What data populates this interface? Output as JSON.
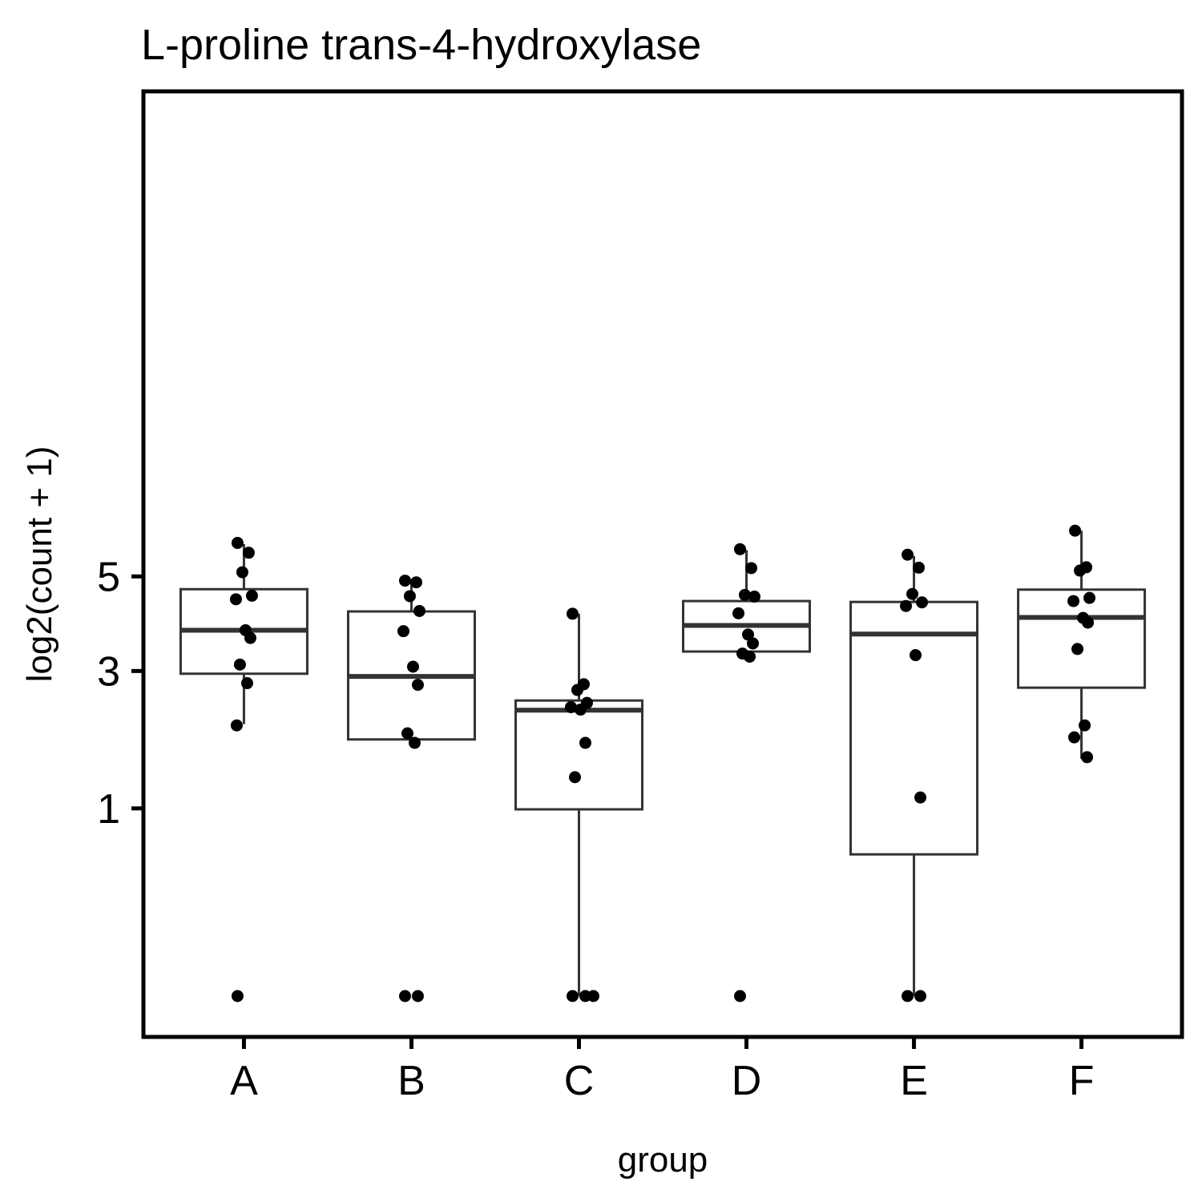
{
  "chart_data": {
    "type": "box",
    "title": "L-proline trans-4-hydroxylase",
    "xlabel": "group",
    "ylabel": "log2(count + 1)",
    "y_scale": "sqrt",
    "ylim": [
      0,
      6.55
    ],
    "y_ticks": [
      1,
      3,
      5
    ],
    "categories": [
      "A",
      "B",
      "C",
      "D",
      "E",
      "F"
    ],
    "boxes": [
      {
        "category": "A",
        "whisker_low": 2.1,
        "q1": 2.95,
        "median": 3.8,
        "q3": 4.7,
        "whisker_high": 5.8
      },
      {
        "category": "B",
        "whisker_low": 1.8,
        "q1": 1.87,
        "median": 2.9,
        "q3": 4.2,
        "whisker_high": 4.9
      },
      {
        "category": "C",
        "whisker_low": 0,
        "q1": 0.99,
        "median": 2.32,
        "q3": 2.48,
        "whisker_high": 4.15
      },
      {
        "category": "D",
        "whisker_low": 3.3,
        "q1": 3.37,
        "median": 3.9,
        "q3": 4.43,
        "whisker_high": 5.65
      },
      {
        "category": "E",
        "whisker_low": 0,
        "q1": 0.57,
        "median": 3.72,
        "q3": 4.41,
        "whisker_high": 5.5
      },
      {
        "category": "F",
        "whisker_low": 1.6,
        "q1": 2.7,
        "median": 4.07,
        "q3": 4.69,
        "whisker_high": 6.15
      }
    ],
    "points": [
      {
        "group": "A",
        "values": [
          5.83,
          5.58,
          5.1,
          4.55,
          4.47,
          3.8,
          3.64,
          3.12,
          2.78,
          2.08,
          0
        ]
      },
      {
        "group": "B",
        "values": [
          4.9,
          4.86,
          4.54,
          4.21,
          3.78,
          3.08,
          2.75,
          1.96,
          1.82,
          0,
          0
        ]
      },
      {
        "category": "C",
        "group": "C",
        "values": [
          4.15,
          2.76,
          2.66,
          2.44,
          2.37,
          2.33,
          1.82,
          1.36,
          0,
          0,
          0
        ]
      },
      {
        "group": "D",
        "values": [
          5.67,
          5.2,
          4.57,
          4.53,
          4.16,
          3.71,
          3.53,
          3.33,
          3.27,
          0
        ]
      },
      {
        "group": "E",
        "values": [
          5.53,
          5.21,
          4.59,
          4.4,
          4.32,
          3.3,
          1.12,
          0,
          0
        ]
      },
      {
        "group": "F",
        "values": [
          6.15,
          5.22,
          5.14,
          4.5,
          4.43,
          4.06,
          3.96,
          3.42,
          2.08,
          1.9,
          1.62
        ]
      }
    ],
    "grid": false,
    "legend": "none"
  }
}
